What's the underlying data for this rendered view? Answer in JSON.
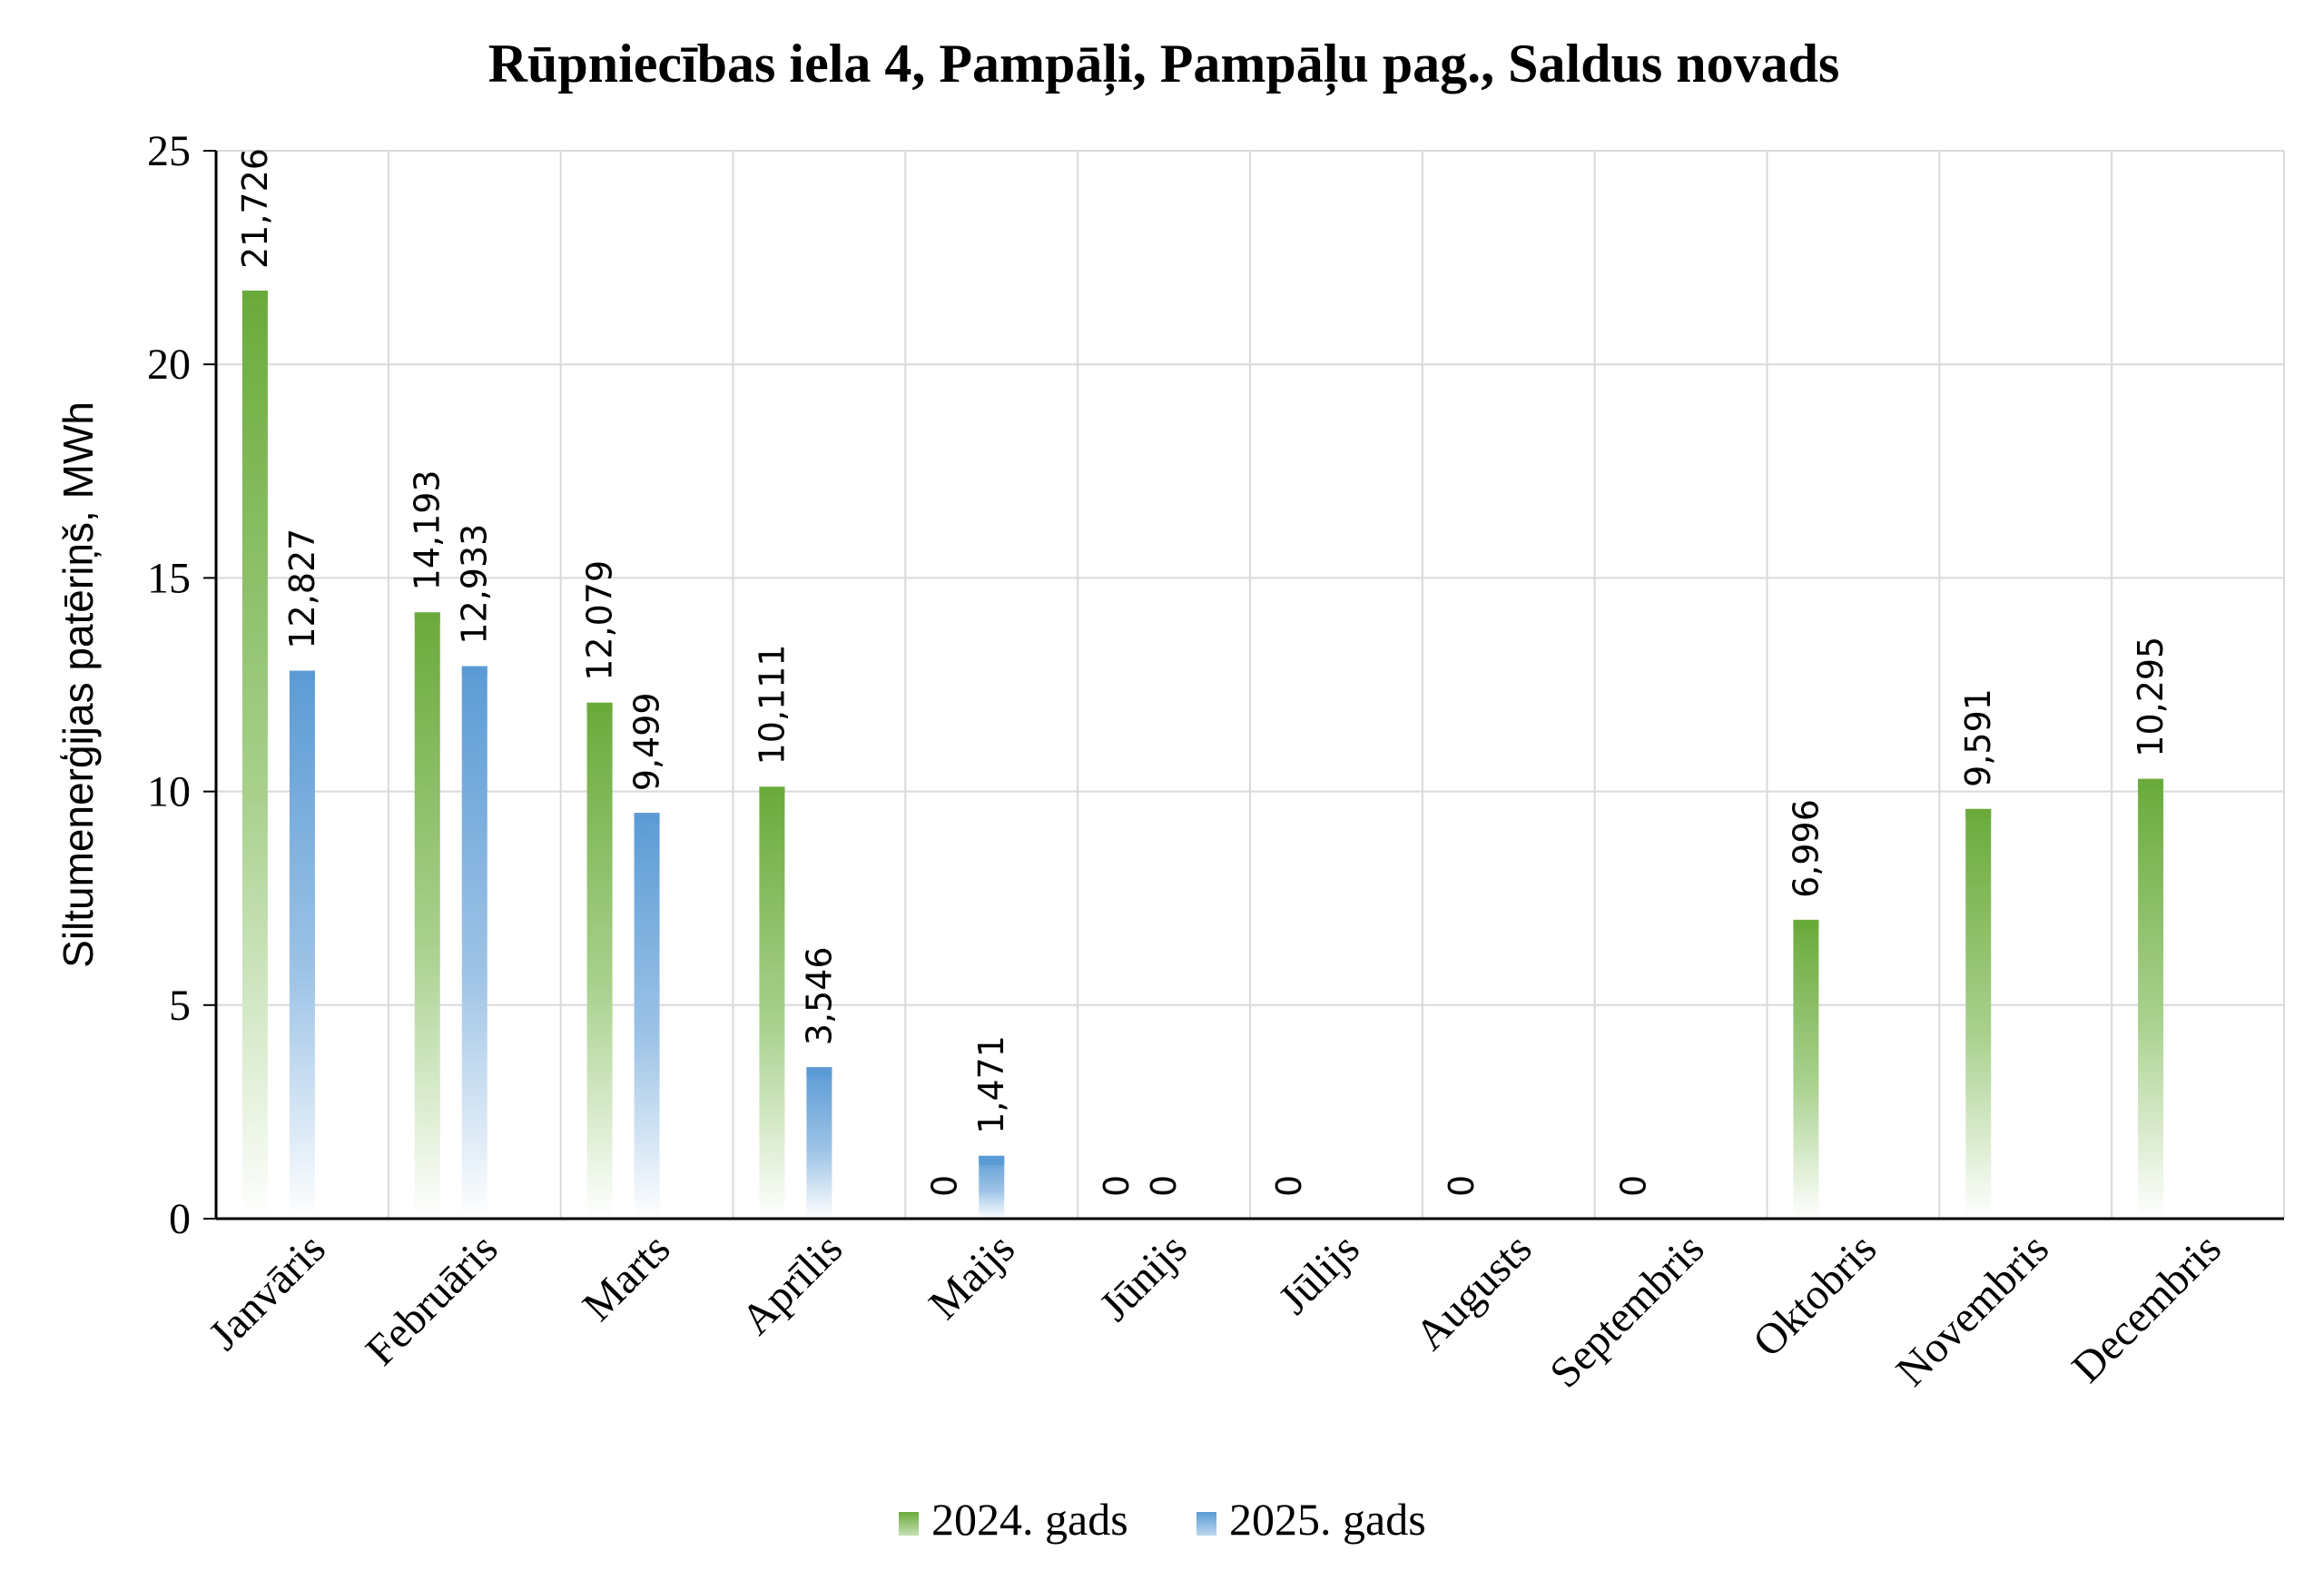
{
  "chart_data": {
    "type": "bar",
    "title": "Rūpniecības iela 4, Pampāļi, Pampāļu pag., Saldus novads",
    "xlabel": "",
    "ylabel": "Siltumenerģijas patēriņš, MWh",
    "ylim": [
      0,
      25
    ],
    "yticks": [
      "0",
      "5",
      "10",
      "15",
      "20",
      "25"
    ],
    "categories": [
      "Janvāris",
      "Februāris",
      "Marts",
      "Aprīlis",
      "Maijs",
      "Jūnijs",
      "Jūlijs",
      "Augusts",
      "Septembris",
      "Oktobris",
      "Novembris",
      "Decembris"
    ],
    "series": [
      {
        "name": "2024. gads",
        "color": "#6aaa3a",
        "values": [
          21.726,
          14.193,
          12.079,
          10.111,
          0,
          0,
          0,
          0,
          0,
          6.996,
          9.591,
          10.295
        ],
        "labels": [
          "21,726",
          "14,193",
          "12,079",
          "10,111",
          "0",
          "0",
          "0",
          "0",
          "0",
          "6,996",
          "9,591",
          "10,295"
        ]
      },
      {
        "name": "2025. gads",
        "color": "#5b9bd5",
        "values": [
          12.827,
          12.933,
          9.499,
          3.546,
          1.471,
          0,
          null,
          null,
          null,
          null,
          null,
          null
        ],
        "labels": [
          "12,827",
          "12,933",
          "9,499",
          "3,546",
          "1,471",
          "0",
          "",
          "",
          "",
          "",
          "",
          ""
        ]
      }
    ],
    "grid": true,
    "legend_position": "bottom"
  }
}
